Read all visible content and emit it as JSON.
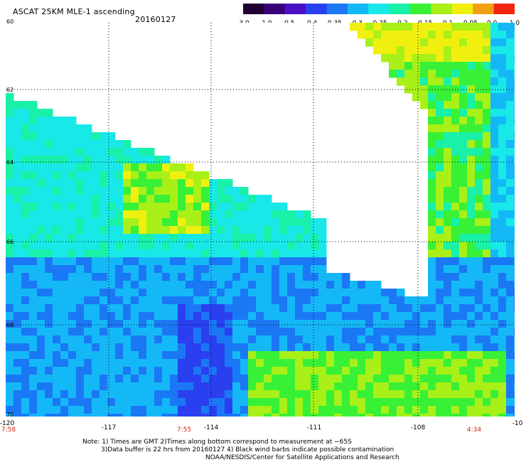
{
  "header": {
    "title": "ASCAT 25KM MLE-1 ascending",
    "date": "20160127"
  },
  "colorbar": {
    "labels": [
      "-3.0",
      "-1.0",
      "-0.5",
      "-0.4",
      "-0.35",
      "-0.3",
      "-0.25",
      "-0.2",
      "-0.15",
      "-0.1",
      "-0.05",
      "0.0",
      "1.0"
    ],
    "colors": [
      "#200030",
      "#3a0078",
      "#4a10c8",
      "#2a40f0",
      "#1b78f5",
      "#15b8f7",
      "#19e8e8",
      "#19f0a8",
      "#38f036",
      "#a8f018",
      "#f0f010",
      "#f0a010",
      "#f02410"
    ]
  },
  "axes": {
    "x_labels": [
      "-120",
      "-117",
      "-114",
      "-111",
      "-108",
      "-10"
    ],
    "y_labels": [
      "60",
      "62",
      "64",
      "66",
      "68",
      "70"
    ]
  },
  "times": [
    "7:58",
    "7:55",
    "4:34"
  ],
  "notes": {
    "line1": "Note: 1) Times are GMT 2)Times along bottom correspond to measurement at −65S",
    "line2": "3)Data buffer is 22 hrs from 20160127 4) Black wind barbs indicate possible contamination",
    "line3": "NOAA/NESDIS/Center for Satellite Applications and Research"
  }
}
